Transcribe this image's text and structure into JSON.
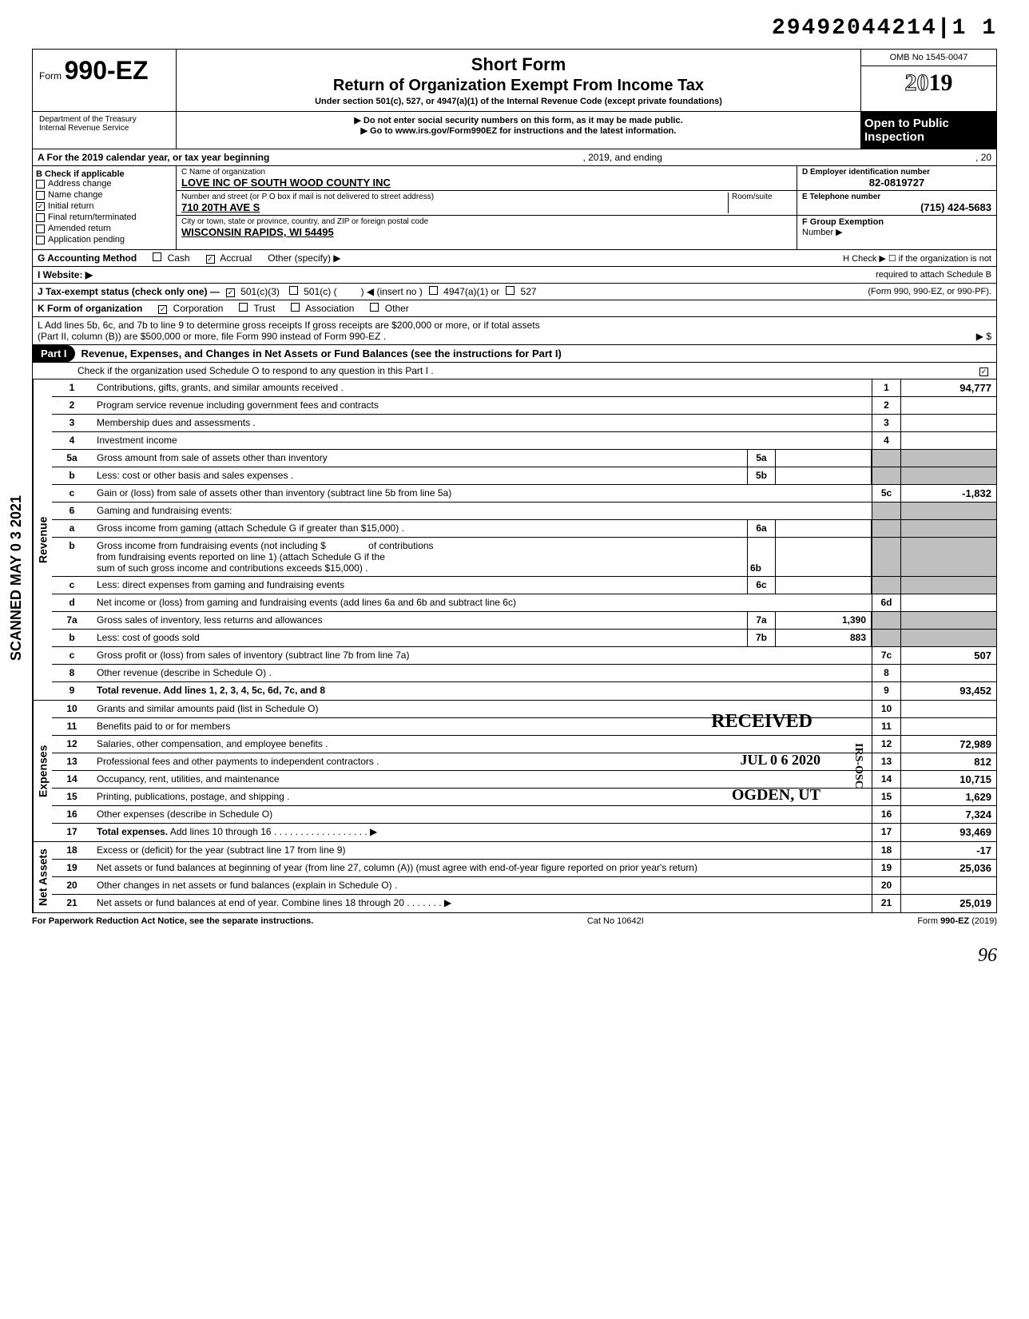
{
  "doc_id": "29492044214|1  1",
  "form": {
    "prefix": "Form",
    "number": "990-EZ"
  },
  "titles": {
    "short": "Short Form",
    "main": "Return of Organization Exempt From Income Tax",
    "sub": "Under section 501(c), 527, or 4947(a)(1) of the Internal Revenue Code (except private foundations)",
    "note1": "▶ Do not enter social security numbers on this form, as it may be made public.",
    "note2": "▶ Go to www.irs.gov/Form990EZ for instructions and the latest information."
  },
  "omb": "OMB No 1545-0047",
  "year": "2019",
  "open_public": "Open to Public Inspection",
  "dept": {
    "l1": "Department of the Treasury",
    "l2": "Internal Revenue Service"
  },
  "section_a": {
    "label": "A For the 2019 calendar year, or tax year beginning",
    "mid": ", 2019, and ending",
    "end": ", 20"
  },
  "section_b": {
    "title": "B Check if applicable",
    "items": [
      {
        "label": "Address change",
        "checked": false
      },
      {
        "label": "Name change",
        "checked": false
      },
      {
        "label": "Initial return",
        "checked": true
      },
      {
        "label": "Final return/terminated",
        "checked": false
      },
      {
        "label": "Amended return",
        "checked": false
      },
      {
        "label": "Application pending",
        "checked": false
      }
    ]
  },
  "section_c": {
    "label": "C  Name of organization",
    "org": "LOVE INC OF SOUTH WOOD COUNTY INC",
    "addr_label": "Number and street (or P O  box if mail is not delivered to street address)",
    "room_label": "Room/suite",
    "addr": "710 20TH AVE S",
    "city_label": "City or town, state or province, country, and ZIP or foreign postal code",
    "city": "WISCONSIN RAPIDS, WI  54495"
  },
  "section_d": {
    "label": "D Employer identification number",
    "val": "82-0819727"
  },
  "section_e": {
    "label": "E Telephone number",
    "val": "(715) 424-5683"
  },
  "section_f": {
    "label": "F Group Exemption",
    "label2": "Number ▶"
  },
  "section_g": {
    "label": "G  Accounting Method",
    "cash": "Cash",
    "accrual": "Accrual",
    "other": "Other (specify) ▶"
  },
  "section_h": {
    "label": "H Check ▶ ☐ if the organization is not",
    "label2": "required to attach Schedule B",
    "label3": "(Form 990, 990-EZ, or 990-PF)."
  },
  "section_i": "I  Website: ▶",
  "section_j": {
    "label": "J Tax-exempt status (check only one) —",
    "o1": "501(c)(3)",
    "o2": "501(c) (",
    "o3": ") ◀ (insert no )",
    "o4": "4947(a)(1) or",
    "o5": "527"
  },
  "section_k": {
    "label": "K Form of organization",
    "o1": "Corporation",
    "o2": "Trust",
    "o3": "Association",
    "o4": "Other"
  },
  "section_l": {
    "l1": "L  Add lines 5b, 6c, and 7b to line 9 to determine gross receipts  If gross receipts are $200,000 or more, or if total assets",
    "l2": "(Part II, column (B)) are $500,000 or more, file Form 990 instead of Form 990-EZ .",
    "arrow": "▶  $"
  },
  "part1": {
    "title": "Part I",
    "heading": "Revenue, Expenses, and Changes in Net Assets or Fund Balances (see the instructions for Part I)",
    "check_line": "Check if the organization used Schedule O to respond to any question in this Part I ."
  },
  "side_labels": {
    "rev": "Revenue",
    "exp": "Expenses",
    "net": "Net Assets"
  },
  "scan_stamp": "SCANNED MAY 0 3 2021",
  "lines": {
    "l1": {
      "n": "1",
      "d": "Contributions, gifts, grants, and similar amounts received .",
      "v": "94,777"
    },
    "l2": {
      "n": "2",
      "d": "Program service revenue including government fees and contracts",
      "v": ""
    },
    "l3": {
      "n": "3",
      "d": "Membership dues and assessments .",
      "v": ""
    },
    "l4": {
      "n": "4",
      "d": "Investment income",
      "v": ""
    },
    "l5a": {
      "n": "5a",
      "d": "Gross amount from sale of assets other than inventory",
      "mv": ""
    },
    "l5b": {
      "n": "b",
      "d": "Less: cost or other basis and sales expenses .",
      "mv": ""
    },
    "l5c": {
      "n": "c",
      "d": "Gain or (loss) from sale of assets other than inventory (subtract line 5b from line 5a)",
      "en": "5c",
      "v": "-1,832"
    },
    "l6": {
      "n": "6",
      "d": "Gaming and fundraising events:"
    },
    "l6a": {
      "n": "a",
      "d": "Gross income from gaming (attach Schedule G if greater than $15,000) .",
      "mn": "6a",
      "mv": ""
    },
    "l6b": {
      "n": "b",
      "d1": "Gross income from fundraising events (not including  $",
      "d2": "of contributions",
      "d3": "from fundraising events reported on line 1) (attach Schedule G if the",
      "d4": "sum of such gross income and contributions exceeds $15,000) .",
      "mn": "6b",
      "mv": ""
    },
    "l6c": {
      "n": "c",
      "d": "Less: direct expenses from gaming and fundraising events",
      "mn": "6c",
      "mv": ""
    },
    "l6d": {
      "n": "d",
      "d": "Net income or (loss) from gaming and fundraising events (add lines 6a and 6b and subtract line 6c)",
      "en": "6d",
      "v": ""
    },
    "l7a": {
      "n": "7a",
      "d": "Gross sales of inventory, less returns and allowances",
      "mn": "7a",
      "mv": "1,390"
    },
    "l7b": {
      "n": "b",
      "d": "Less: cost of goods sold",
      "mn": "7b",
      "mv": "883"
    },
    "l7c": {
      "n": "c",
      "d": "Gross profit or (loss) from sales of inventory (subtract line 7b from line 7a)",
      "en": "7c",
      "v": "507"
    },
    "l8": {
      "n": "8",
      "d": "Other revenue (describe in Schedule O) .",
      "en": "8",
      "v": ""
    },
    "l9": {
      "n": "9",
      "d": "Total revenue. Add lines 1, 2, 3, 4, 5c, 6d, 7c, and 8",
      "en": "9",
      "v": "93,452"
    },
    "l10": {
      "n": "10",
      "d": "Grants and similar amounts paid (list in Schedule O)",
      "en": "10",
      "v": ""
    },
    "l11": {
      "n": "11",
      "d": "Benefits paid to or for members",
      "en": "11",
      "v": ""
    },
    "l12": {
      "n": "12",
      "d": "Salaries, other compensation, and employee benefits .",
      "en": "12",
      "v": "72,989"
    },
    "l13": {
      "n": "13",
      "d": "Professional fees and other payments to independent contractors .",
      "en": "13",
      "v": "812"
    },
    "l14": {
      "n": "14",
      "d": "Occupancy, rent, utilities, and maintenance",
      "en": "14",
      "v": "10,715"
    },
    "l15": {
      "n": "15",
      "d": "Printing, publications, postage, and shipping .",
      "en": "15",
      "v": "1,629"
    },
    "l16": {
      "n": "16",
      "d": "Other expenses (describe in Schedule O)",
      "en": "16",
      "v": "7,324"
    },
    "l17": {
      "n": "17",
      "d": "Total expenses. Add lines 10 through 16",
      "en": "17",
      "v": "93,469"
    },
    "l18": {
      "n": "18",
      "d": "Excess or (deficit) for the year (subtract line 17 from line 9)",
      "en": "18",
      "v": "-17"
    },
    "l19": {
      "n": "19",
      "d": "Net assets or fund balances at beginning of year (from line 27, column (A)) (must agree with end-of-year figure reported on prior year's return)",
      "en": "19",
      "v": "25,036"
    },
    "l20": {
      "n": "20",
      "d": "Other changes in net assets or fund balances (explain in Schedule O) .",
      "en": "20",
      "v": ""
    },
    "l21": {
      "n": "21",
      "d": "Net assets or fund balances at end of year. Combine lines 18 through 20",
      "en": "21",
      "v": "25,019"
    }
  },
  "stamps": {
    "received": "RECEIVED",
    "date": "JUL 0 6 2020",
    "ogden": "OGDEN, UT",
    "irs": "IRS-OSC"
  },
  "footer": {
    "left": "For Paperwork Reduction Act Notice, see the separate instructions.",
    "mid": "Cat  No  10642I",
    "right": "Form 990-EZ (2019)"
  },
  "initial": "96"
}
